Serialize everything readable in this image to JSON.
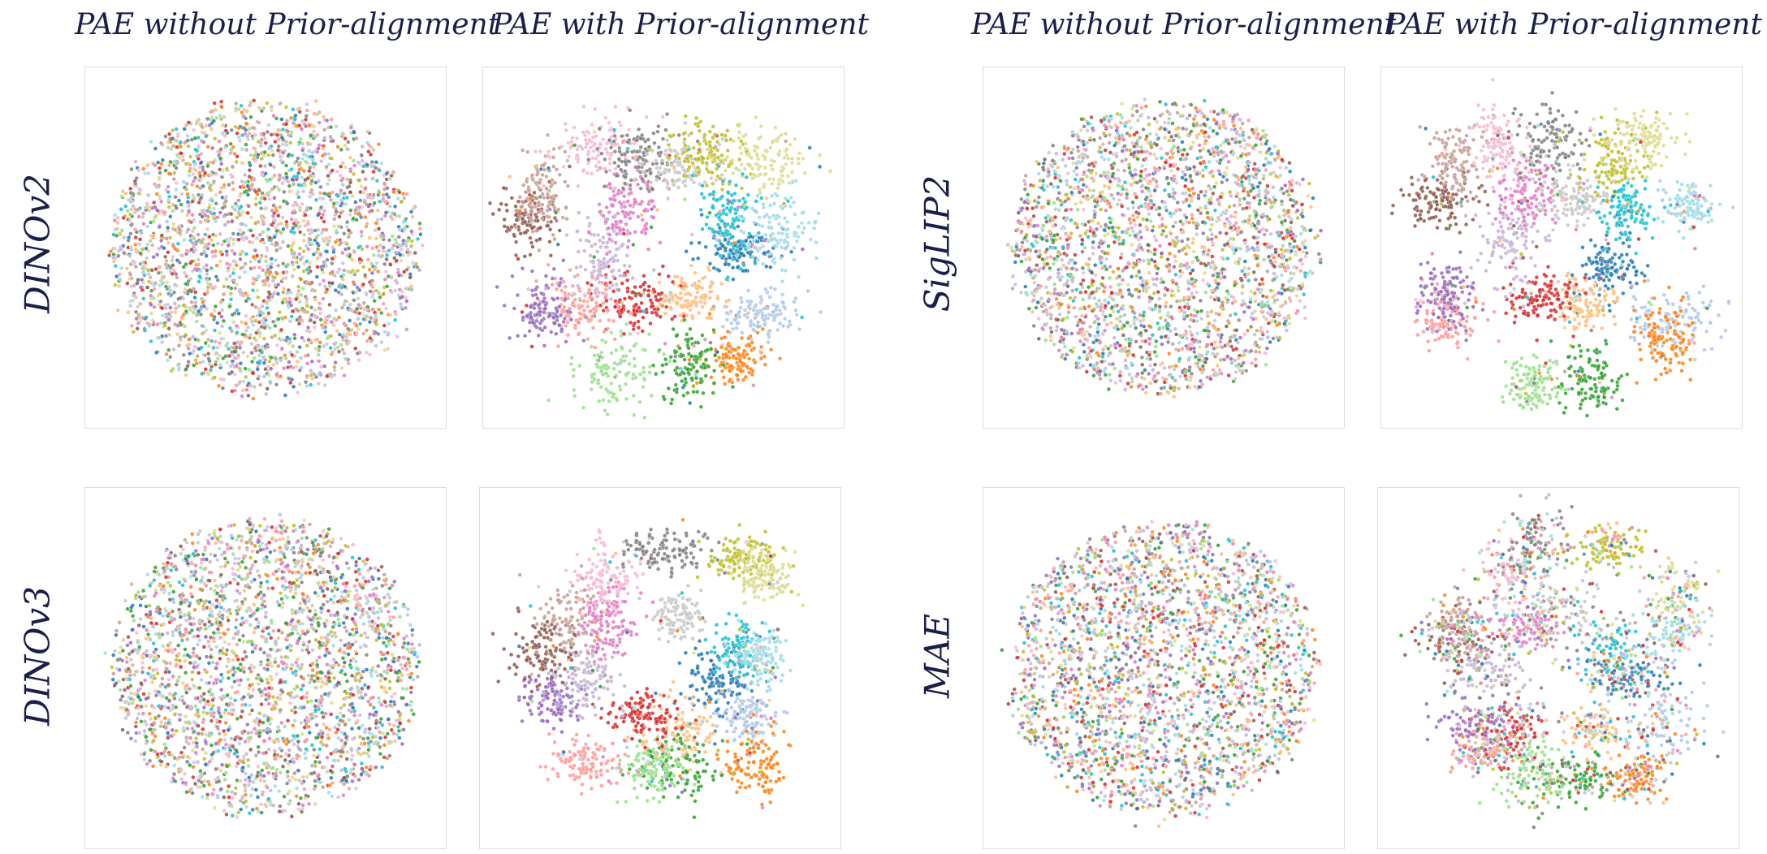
{
  "column_titles": {
    "left_without": "PAE without Prior-alignment",
    "left_with": "PAE with Prior-alignment",
    "right_without": "PAE without Prior-alignment",
    "right_with": "PAE with Prior-alignment"
  },
  "row_labels": {
    "dinov2": "DINOv2",
    "siglip2": "SigLIP2",
    "dinov3": "DINOv3",
    "mae": "MAE"
  },
  "palette": [
    "#1f77b4",
    "#aec7e8",
    "#ff7f0e",
    "#ffbb78",
    "#2ca02c",
    "#98df8a",
    "#d62728",
    "#ff9896",
    "#9467bd",
    "#c5b0d5",
    "#8c564b",
    "#c49c94",
    "#e377c2",
    "#f7b6d2",
    "#7f7f7f",
    "#c7c7c7",
    "#bcbd22",
    "#dbdb8d",
    "#17becf",
    "#9edae5"
  ],
  "chart_data": [
    {
      "type": "scatter",
      "model": "DINOv2",
      "variant": "PAE without Prior-alignment",
      "structure": "mixed",
      "grid": false,
      "legend": "none"
    },
    {
      "type": "scatter",
      "model": "DINOv2",
      "variant": "PAE with Prior-alignment",
      "structure": "clustered",
      "grid": false,
      "legend": "none"
    },
    {
      "type": "scatter",
      "model": "SigLIP2",
      "variant": "PAE without Prior-alignment",
      "structure": "mixed",
      "grid": false,
      "legend": "none"
    },
    {
      "type": "scatter",
      "model": "SigLIP2",
      "variant": "PAE with Prior-alignment",
      "structure": "clustered",
      "grid": false,
      "legend": "none"
    },
    {
      "type": "scatter",
      "model": "DINOv3",
      "variant": "PAE without Prior-alignment",
      "structure": "mixed",
      "grid": false,
      "legend": "none"
    },
    {
      "type": "scatter",
      "model": "DINOv3",
      "variant": "PAE with Prior-alignment",
      "structure": "clustered",
      "grid": false,
      "legend": "none"
    },
    {
      "type": "scatter",
      "model": "MAE",
      "variant": "PAE without Prior-alignment",
      "structure": "mixed",
      "grid": false,
      "legend": "none"
    },
    {
      "type": "scatter",
      "model": "MAE",
      "variant": "PAE with Prior-alignment",
      "structure": "partially-clustered",
      "grid": false,
      "legend": "none"
    }
  ]
}
